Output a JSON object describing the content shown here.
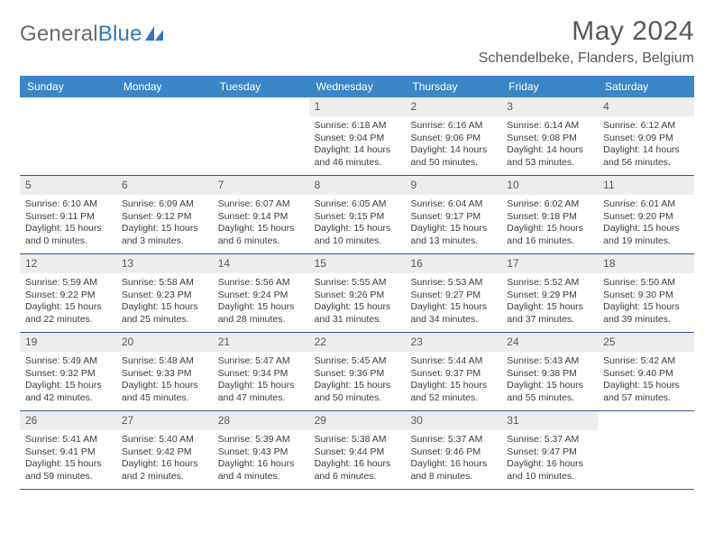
{
  "brand": {
    "word1": "General",
    "word2": "Blue"
  },
  "title": "May 2024",
  "location": "Schendelbeke, Flanders, Belgium",
  "colors": {
    "header_bg": "#3b86c6",
    "header_text": "#ffffff",
    "daynum_bg": "#ededed",
    "row_divider": "#2f5a86",
    "title_color": "#595959",
    "cell_text": "#3b3b3b",
    "brand_gray": "#6b6b6b",
    "brand_blue": "#2f78bd",
    "page_bg": "#ffffff"
  },
  "typography": {
    "month_title_pt": 30,
    "location_pt": 16,
    "weekday_pt": 12,
    "daynum_pt": 12,
    "cell_pt": 10.5
  },
  "weekdays": [
    "Sunday",
    "Monday",
    "Tuesday",
    "Wednesday",
    "Thursday",
    "Friday",
    "Saturday"
  ],
  "weeks": [
    [
      {
        "n": "",
        "t": ""
      },
      {
        "n": "",
        "t": ""
      },
      {
        "n": "",
        "t": ""
      },
      {
        "n": "1",
        "t": "Sunrise: 6:18 AM\nSunset: 9:04 PM\nDaylight: 14 hours and 46 minutes."
      },
      {
        "n": "2",
        "t": "Sunrise: 6:16 AM\nSunset: 9:06 PM\nDaylight: 14 hours and 50 minutes."
      },
      {
        "n": "3",
        "t": "Sunrise: 6:14 AM\nSunset: 9:08 PM\nDaylight: 14 hours and 53 minutes."
      },
      {
        "n": "4",
        "t": "Sunrise: 6:12 AM\nSunset: 9:09 PM\nDaylight: 14 hours and 56 minutes."
      }
    ],
    [
      {
        "n": "5",
        "t": "Sunrise: 6:10 AM\nSunset: 9:11 PM\nDaylight: 15 hours and 0 minutes."
      },
      {
        "n": "6",
        "t": "Sunrise: 6:09 AM\nSunset: 9:12 PM\nDaylight: 15 hours and 3 minutes."
      },
      {
        "n": "7",
        "t": "Sunrise: 6:07 AM\nSunset: 9:14 PM\nDaylight: 15 hours and 6 minutes."
      },
      {
        "n": "8",
        "t": "Sunrise: 6:05 AM\nSunset: 9:15 PM\nDaylight: 15 hours and 10 minutes."
      },
      {
        "n": "9",
        "t": "Sunrise: 6:04 AM\nSunset: 9:17 PM\nDaylight: 15 hours and 13 minutes."
      },
      {
        "n": "10",
        "t": "Sunrise: 6:02 AM\nSunset: 9:18 PM\nDaylight: 15 hours and 16 minutes."
      },
      {
        "n": "11",
        "t": "Sunrise: 6:01 AM\nSunset: 9:20 PM\nDaylight: 15 hours and 19 minutes."
      }
    ],
    [
      {
        "n": "12",
        "t": "Sunrise: 5:59 AM\nSunset: 9:22 PM\nDaylight: 15 hours and 22 minutes."
      },
      {
        "n": "13",
        "t": "Sunrise: 5:58 AM\nSunset: 9:23 PM\nDaylight: 15 hours and 25 minutes."
      },
      {
        "n": "14",
        "t": "Sunrise: 5:56 AM\nSunset: 9:24 PM\nDaylight: 15 hours and 28 minutes."
      },
      {
        "n": "15",
        "t": "Sunrise: 5:55 AM\nSunset: 9:26 PM\nDaylight: 15 hours and 31 minutes."
      },
      {
        "n": "16",
        "t": "Sunrise: 5:53 AM\nSunset: 9:27 PM\nDaylight: 15 hours and 34 minutes."
      },
      {
        "n": "17",
        "t": "Sunrise: 5:52 AM\nSunset: 9:29 PM\nDaylight: 15 hours and 37 minutes."
      },
      {
        "n": "18",
        "t": "Sunrise: 5:50 AM\nSunset: 9:30 PM\nDaylight: 15 hours and 39 minutes."
      }
    ],
    [
      {
        "n": "19",
        "t": "Sunrise: 5:49 AM\nSunset: 9:32 PM\nDaylight: 15 hours and 42 minutes."
      },
      {
        "n": "20",
        "t": "Sunrise: 5:48 AM\nSunset: 9:33 PM\nDaylight: 15 hours and 45 minutes."
      },
      {
        "n": "21",
        "t": "Sunrise: 5:47 AM\nSunset: 9:34 PM\nDaylight: 15 hours and 47 minutes."
      },
      {
        "n": "22",
        "t": "Sunrise: 5:45 AM\nSunset: 9:36 PM\nDaylight: 15 hours and 50 minutes."
      },
      {
        "n": "23",
        "t": "Sunrise: 5:44 AM\nSunset: 9:37 PM\nDaylight: 15 hours and 52 minutes."
      },
      {
        "n": "24",
        "t": "Sunrise: 5:43 AM\nSunset: 9:38 PM\nDaylight: 15 hours and 55 minutes."
      },
      {
        "n": "25",
        "t": "Sunrise: 5:42 AM\nSunset: 9:40 PM\nDaylight: 15 hours and 57 minutes."
      }
    ],
    [
      {
        "n": "26",
        "t": "Sunrise: 5:41 AM\nSunset: 9:41 PM\nDaylight: 15 hours and 59 minutes."
      },
      {
        "n": "27",
        "t": "Sunrise: 5:40 AM\nSunset: 9:42 PM\nDaylight: 16 hours and 2 minutes."
      },
      {
        "n": "28",
        "t": "Sunrise: 5:39 AM\nSunset: 9:43 PM\nDaylight: 16 hours and 4 minutes."
      },
      {
        "n": "29",
        "t": "Sunrise: 5:38 AM\nSunset: 9:44 PM\nDaylight: 16 hours and 6 minutes."
      },
      {
        "n": "30",
        "t": "Sunrise: 5:37 AM\nSunset: 9:46 PM\nDaylight: 16 hours and 8 minutes."
      },
      {
        "n": "31",
        "t": "Sunrise: 5:37 AM\nSunset: 9:47 PM\nDaylight: 16 hours and 10 minutes."
      },
      {
        "n": "",
        "t": ""
      }
    ]
  ]
}
